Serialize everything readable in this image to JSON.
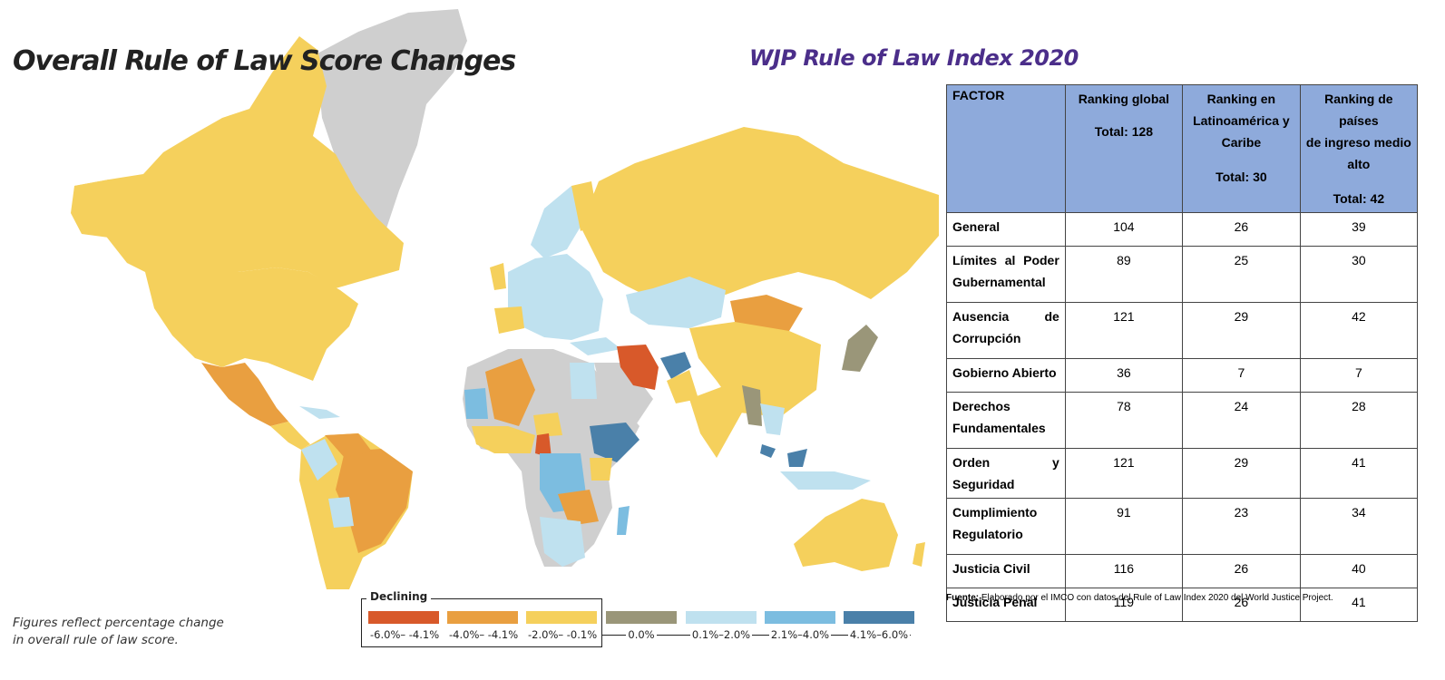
{
  "map": {
    "title": "Overall Rule of Law Score Changes",
    "note_lines": [
      "Figures reflect percentage change",
      "in overall rule of law score."
    ],
    "colors": {
      "decline_strong": "#d8592a",
      "decline_mid": "#e99f40",
      "decline_low": "#f5d05c",
      "neutral": "#9a9679",
      "gain_low": "#bfe1ef",
      "gain_mid": "#7cbde0",
      "gain_strong": "#4a80a9",
      "no_data": "#cfcfcf"
    },
    "legend": {
      "heading": "Declining",
      "items": [
        {
          "label": "-6.0%– -4.1%",
          "color": "#d8592a"
        },
        {
          "label": "-4.0%– -4.1%",
          "color": "#e99f40"
        },
        {
          "label": "-2.0%– -0.1%",
          "color": "#f5d05c"
        },
        {
          "label": "0.0%",
          "color": "#9a9679"
        },
        {
          "label": "0.1%–2.0%",
          "color": "#bfe1ef"
        },
        {
          "label": "2.1%–4.0%",
          "color": "#7cbde0"
        },
        {
          "label": "4.1%–6.0%",
          "color": "#4a80a9"
        }
      ]
    }
  },
  "report": {
    "title": "WJP Rule of Law Index 2020"
  },
  "table": {
    "header": {
      "factor": "FACTOR",
      "global": {
        "label": "Ranking global",
        "total": "Total: 128"
      },
      "latam": {
        "label_lines": [
          "Ranking en",
          "Latinoamérica y",
          "Caribe"
        ],
        "total": "Total: 30"
      },
      "upper_middle": {
        "label_lines": [
          "Ranking de países",
          "de ingreso medio",
          "alto"
        ],
        "total": "Total: 42"
      }
    },
    "rows": [
      {
        "factor": "General",
        "global": "104",
        "latam": "26",
        "upper_middle": "39"
      },
      {
        "factor": "Límites al Poder Gubernamental",
        "global": "89",
        "latam": "25",
        "upper_middle": "30"
      },
      {
        "factor": "Ausencia de Corrupción",
        "global": "121",
        "latam": "29",
        "upper_middle": "42"
      },
      {
        "factor": "Gobierno Abierto",
        "global": "36",
        "latam": "7",
        "upper_middle": "7"
      },
      {
        "factor": "Derechos Fundamentales",
        "global": "78",
        "latam": "24",
        "upper_middle": "28"
      },
      {
        "factor": "Orden y Seguridad",
        "global": "121",
        "latam": "29",
        "upper_middle": "41"
      },
      {
        "factor": "Cumplimiento Regulatorio",
        "global": "91",
        "latam": "23",
        "upper_middle": "34"
      },
      {
        "factor": "Justicia Civil",
        "global": "116",
        "latam": "26",
        "upper_middle": "40"
      },
      {
        "factor": "Justicia Penal",
        "global": "119",
        "latam": "26",
        "upper_middle": "41"
      }
    ],
    "source_label": "Fuente:",
    "source_text": " Elaborado por el IMCO con datos del Rule of Law Index 2020 del World Justice Project."
  }
}
